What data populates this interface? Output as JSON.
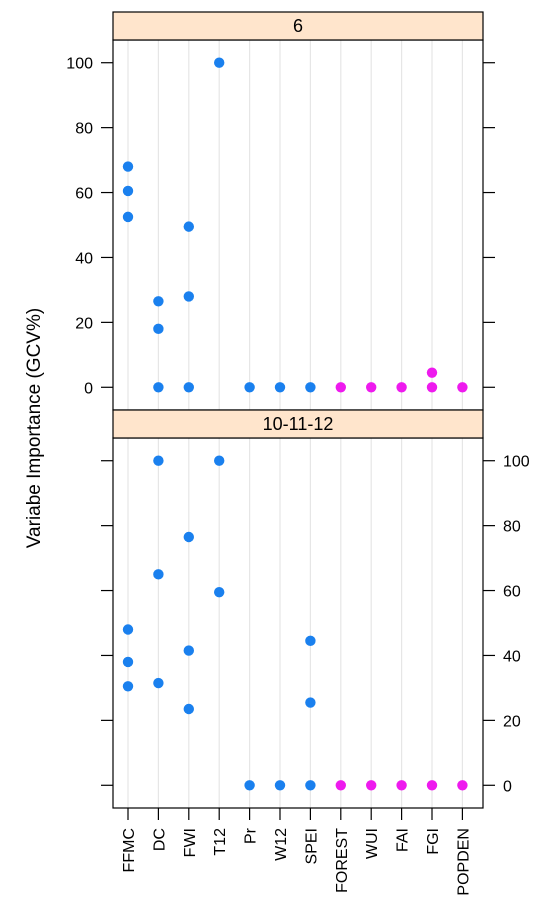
{
  "chart_data": {
    "type": "scatter",
    "ylabel": "Variabe Importance (GCV%)",
    "categories": [
      "FFMC",
      "DC",
      "FWI",
      "T12",
      "Pr",
      "W12",
      "SPEI",
      "FOREST",
      "WUI",
      "FAI",
      "FGI",
      "POPDEN"
    ],
    "y_ticks": [
      0,
      20,
      40,
      60,
      80,
      100
    ],
    "grid": true,
    "colors": {
      "climate": "#1a80ee",
      "anthropic": "#ee1aee",
      "strip": "#ffe5cc"
    },
    "category_groups": [
      "climate",
      "climate",
      "climate",
      "climate",
      "climate",
      "climate",
      "climate",
      "anthropic",
      "anthropic",
      "anthropic",
      "anthropic",
      "anthropic"
    ],
    "panels": [
      {
        "strip": "6",
        "ylim": [
          -7,
          107
        ],
        "axis_labels_side": "left",
        "points": {
          "FFMC": [
            52.5,
            60.5,
            68
          ],
          "DC": [
            0,
            18,
            26.5
          ],
          "FWI": [
            0,
            28,
            49.5
          ],
          "T12": [
            100
          ],
          "Pr": [
            0
          ],
          "W12": [
            0
          ],
          "SPEI": [
            0
          ],
          "FOREST": [
            0
          ],
          "WUI": [
            0
          ],
          "FAI": [
            0
          ],
          "FGI": [
            0,
            4.5
          ],
          "POPDEN": [
            0
          ]
        }
      },
      {
        "strip": "10-11-12",
        "ylim": [
          -7,
          107
        ],
        "axis_labels_side": "right",
        "points": {
          "FFMC": [
            30.5,
            38,
            48
          ],
          "DC": [
            31.5,
            65,
            100
          ],
          "FWI": [
            23.5,
            41.5,
            76.5
          ],
          "T12": [
            59.5,
            100
          ],
          "Pr": [
            0
          ],
          "W12": [
            0
          ],
          "SPEI": [
            0,
            25.5,
            44.5
          ],
          "FOREST": [
            0
          ],
          "WUI": [
            0
          ],
          "FAI": [
            0
          ],
          "FGI": [
            0
          ],
          "POPDEN": [
            0
          ]
        }
      }
    ]
  }
}
